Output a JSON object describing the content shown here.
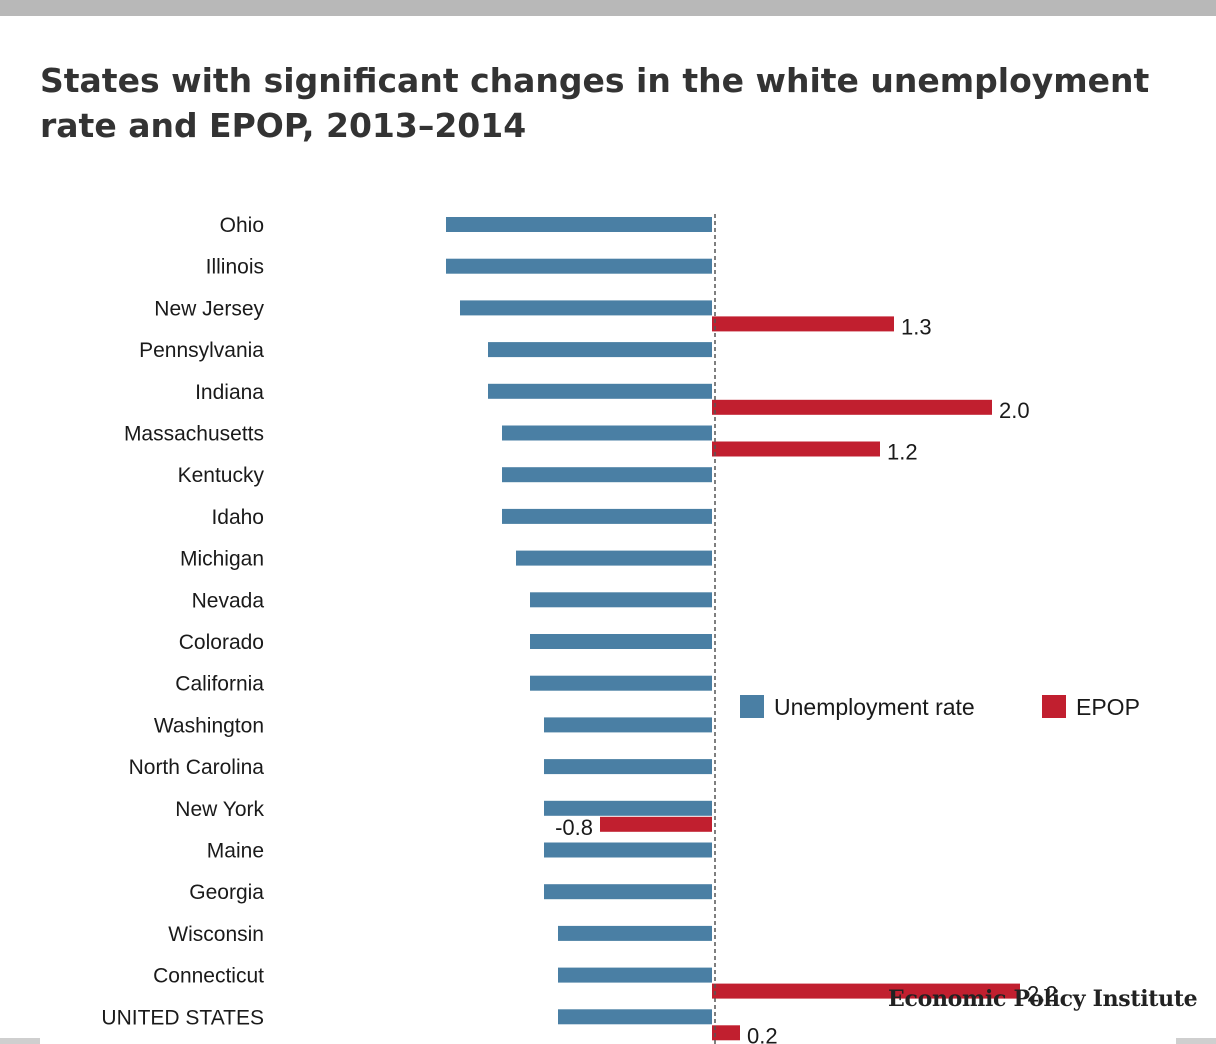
{
  "chart_data": {
    "type": "bar",
    "title": "States with significant changes in the white unemployment rate and EPOP, 2013–2014",
    "categories": [
      "Ohio",
      "Illinois",
      "New Jersey",
      "Pennsylvania",
      "Indiana",
      "Massachusetts",
      "Kentucky",
      "Idaho",
      "Michigan",
      "Nevada",
      "Colorado",
      "California",
      "Washington",
      "North Carolina",
      "New York",
      "Maine",
      "Georgia",
      "Wisconsin",
      "Connecticut",
      "UNITED STATES"
    ],
    "series": [
      {
        "name": "Unemployment rate",
        "color": "#4a7fa4",
        "values": [
          -1.9,
          -1.9,
          -1.8,
          -1.6,
          -1.6,
          -1.5,
          -1.5,
          -1.5,
          -1.4,
          -1.3,
          -1.3,
          -1.3,
          -1.2,
          -1.2,
          -1.2,
          -1.2,
          -1.2,
          -1.1,
          -1.1,
          -1.1
        ],
        "labels": [
          null,
          null,
          null,
          null,
          null,
          null,
          null,
          null,
          null,
          null,
          null,
          null,
          null,
          null,
          null,
          null,
          null,
          null,
          null,
          null
        ]
      },
      {
        "name": "EPOP",
        "color": "#c11f2f",
        "values": [
          null,
          null,
          1.3,
          null,
          2.0,
          1.2,
          null,
          null,
          null,
          null,
          null,
          null,
          null,
          null,
          -0.8,
          null,
          null,
          null,
          2.2,
          0.2
        ],
        "labels": [
          null,
          null,
          "1.3",
          null,
          "2.0",
          "1.2",
          null,
          null,
          null,
          null,
          null,
          null,
          null,
          null,
          "-0.8",
          null,
          null,
          null,
          "2.2",
          "0.2"
        ]
      }
    ],
    "legend_position": "right",
    "zero_line": "dashed",
    "grid": false
  },
  "branding": "Economic Policy Institute"
}
